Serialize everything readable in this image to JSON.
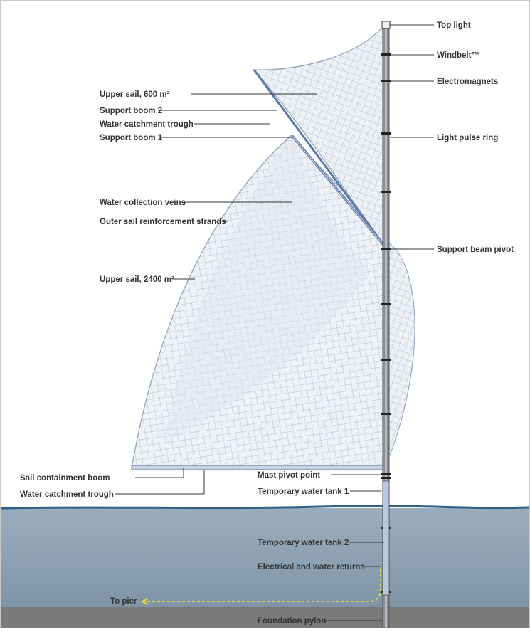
{
  "labels": {
    "top_light": "Top light",
    "windbelt": "Windbelt™",
    "electromagnets": "Electromagnets",
    "light_pulse_ring": "Light pulse ring",
    "support_beam_pivot": "Support beam pivot",
    "upper_sail_600": "Upper sail, 600 m²",
    "support_boom_2": "Support boom 2",
    "water_catchment_trough_upper": "Water catchment trough",
    "support_boom_1": "Support boom 1",
    "water_collection_veins": "Water collection veins",
    "outer_sail_reinforcement": "Outer sail reinforcement strands",
    "upper_sail_2400": "Upper sail, 2400 m²",
    "sail_containment_boom": "Sail containment boom",
    "water_catchment_trough_lower": "Water catchment trough",
    "mast_pivot_point": "Mast pivot point",
    "temp_water_tank_1": "Temporary water tank 1",
    "temp_water_tank_2": "Temporary water tank 2",
    "electrical_water_returns": "Electrical and water returns",
    "to_pier": "To pier",
    "foundation_pylon": "Foundation pylon"
  },
  "colors": {
    "sail_fill": "#e9edf3",
    "sail_grid": "#a9b6c8",
    "sail_edge": "#5a78a8",
    "mast": "#6b6f74",
    "water": "#8fa3b3",
    "water_surface": "#2f5f86",
    "seabed": "#7a7a7a",
    "cable": "#e6d44a"
  }
}
